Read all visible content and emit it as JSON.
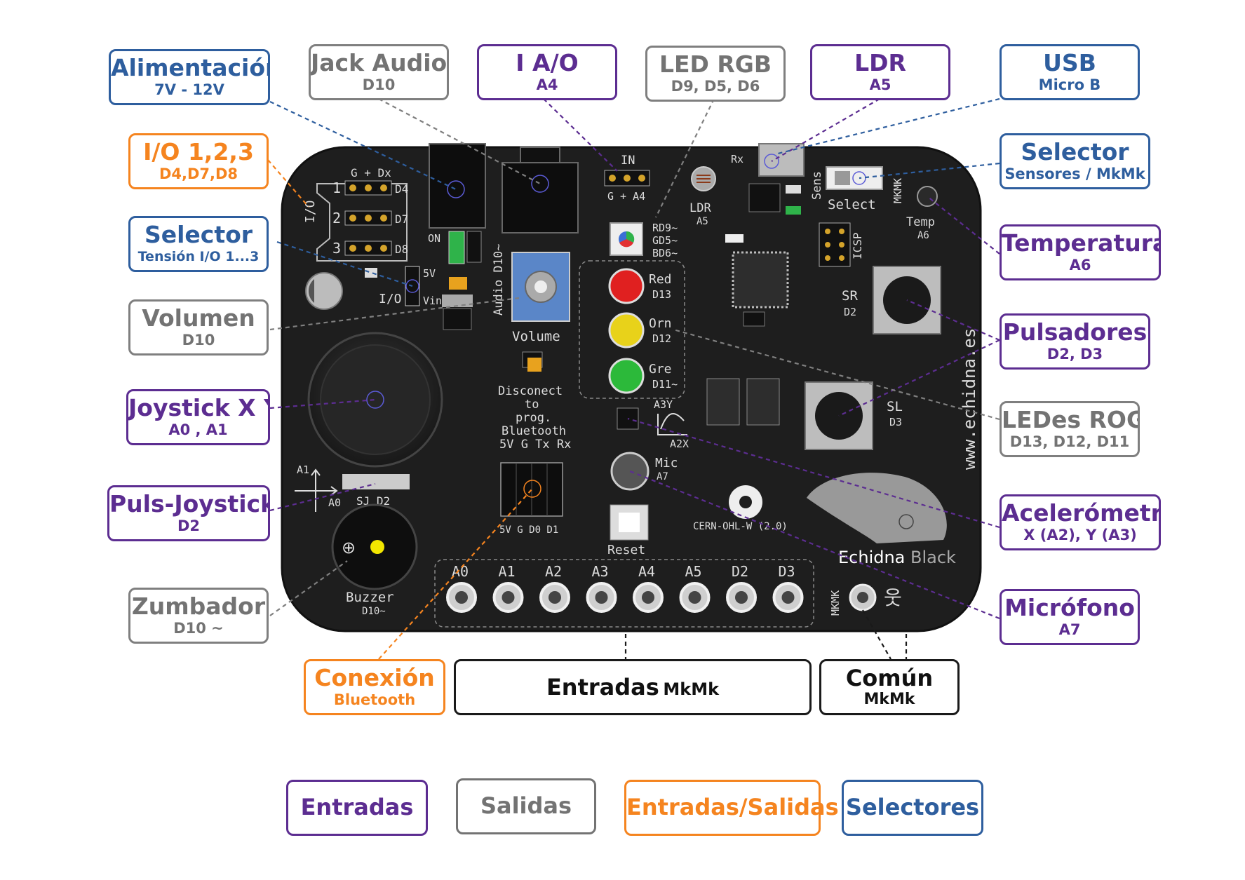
{
  "callouts": {
    "alimentacion": {
      "title": "Alimentación",
      "sub": "7V - 12V",
      "group": "Selectores"
    },
    "jack_audio": {
      "title": "Jack Audio",
      "sub": "D10",
      "group": "Salidas"
    },
    "io": {
      "title": "I A/O",
      "sub": "A4",
      "group": "Entradas"
    },
    "led_rgb": {
      "title": "LED RGB",
      "sub": "D9, D5, D6",
      "group": "Salidas"
    },
    "ldr": {
      "title": "LDR",
      "sub": "A5",
      "group": "Entradas"
    },
    "usb": {
      "title": "USB",
      "sub": "Micro B",
      "group": "Selectores"
    },
    "io123": {
      "title": "I/O 1,2,3",
      "sub": "D4,D7,D8",
      "group": "Entradas/Salidas"
    },
    "selector_sensores": {
      "title": "Selector",
      "sub": "Sensores / MkMk",
      "group": "Selectores"
    },
    "selector_tension": {
      "title": "Selector",
      "sub": "Tensión I/O 1...3",
      "group": "Selectores"
    },
    "temperatura": {
      "title": "Temperatura",
      "sub": "A6",
      "group": "Entradas"
    },
    "volumen": {
      "title": "Volumen",
      "sub": "D10",
      "group": "Salidas"
    },
    "pulsadores": {
      "title": "Pulsadores",
      "sub": "D2, D3",
      "group": "Entradas"
    },
    "joystick": {
      "title": "Joystick X Y",
      "sub": "A0 , A1",
      "group": "Entradas"
    },
    "ledes_rog": {
      "title": "LEDes ROG",
      "sub": "D13, D12, D11",
      "group": "Salidas"
    },
    "puls_joystick": {
      "title": "Puls-Joystick",
      "sub": "D2",
      "group": "Entradas"
    },
    "acelerometro": {
      "title": "Acelerómetro",
      "sub": "X (A2), Y (A3)",
      "group": "Entradas"
    },
    "zumbador": {
      "title": "Zumbador",
      "sub": "D10 ~",
      "group": "Salidas"
    },
    "microfono": {
      "title": "Micrófono",
      "sub": "A7",
      "group": "Entradas"
    },
    "conexion": {
      "title": "Conexión",
      "sub": "Bluetooth",
      "group": "Entradas/Salidas"
    }
  },
  "entradas_mkmk": {
    "title": "Entradas",
    "sub": "MkMk"
  },
  "comun_mkmk": {
    "title": "Común",
    "sub": "MkMk"
  },
  "legend": [
    "Entradas",
    "Salidas",
    "Entradas/Salidas",
    "Selectores"
  ],
  "colors": {
    "Entradas": "#5c2d91",
    "Salidas": "#7f7f7f",
    "Entradas/Salidas": "#f5841f",
    "Selectores": "#2e5e9e",
    "board": "#1e1e1e"
  },
  "board": {
    "brand": "Echidna",
    "brand2": "Black",
    "website": "www.echidna.es",
    "license": "CERN-OHL-W (2.0)",
    "io_header": "G + Dx",
    "io_side": "I/O",
    "io_rows": [
      {
        "num": "1",
        "pin": "D4"
      },
      {
        "num": "2",
        "pin": "D7"
      },
      {
        "num": "3",
        "pin": "D8"
      }
    ],
    "in_header": {
      "title": "IN",
      "pins": "G + A4"
    },
    "on_label": "ON",
    "v5_label": "5V",
    "vin_label": "Vin",
    "io_sel_label": "I/O",
    "audio_label": "Audio D10~",
    "volume_label": "Volume",
    "ldr_label": "LDR",
    "ldr_pin": "A5",
    "rx_label": "Rx",
    "tx_label": "Tx",
    "sens_label": "Sens",
    "select_label": "Select",
    "mkmk_label": "MKMK",
    "temp_label": "Temp",
    "temp_pin": "A6",
    "icsp_label": "ICSP",
    "rgb_pins": [
      "RD9~",
      "GD5~",
      "BD6~"
    ],
    "leds": [
      {
        "name": "Red",
        "pin": "D13"
      },
      {
        "name": "Orn",
        "pin": "D12"
      },
      {
        "name": "Gre",
        "pin": "D11~"
      }
    ],
    "sr_label": "SR",
    "sr_pin": "D2",
    "sl_label": "SL",
    "sl_pin": "D3",
    "bt_lines": [
      "Disconect",
      "to",
      "prog.",
      "Bluetooth",
      "5V G Tx Rx"
    ],
    "bt_pins": "5V G D0 D1",
    "a3y": "A3Y",
    "a2x": "A2X",
    "mic_label": "Mic",
    "mic_pin": "A7",
    "reset_label": "Reset",
    "joy_a1": "A1",
    "joy_a0": "A0",
    "sj_label": "SJ D2",
    "buzzer_label": "Buzzer",
    "buzzer_pin": "D10~",
    "mkmk_pads": [
      "A0",
      "A1",
      "A2",
      "A3",
      "A4",
      "A5",
      "D2",
      "D3"
    ],
    "mkmk_common": "MKMK"
  }
}
